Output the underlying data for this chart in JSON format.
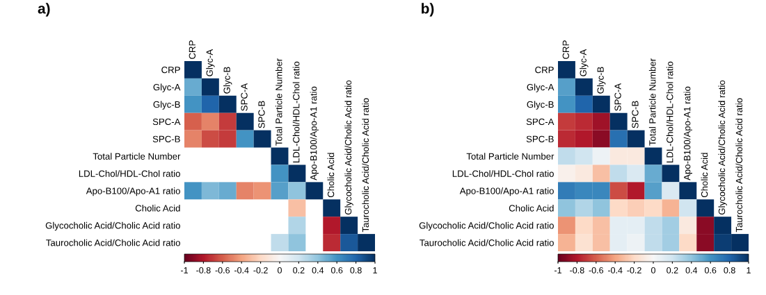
{
  "chart_data": [
    {
      "type": "heatmap",
      "title": "a)",
      "categories": [
        "CRP",
        "Glyc-A",
        "Glyc-B",
        "SPC-A",
        "SPC-B",
        "Total Particle Number",
        "LDL-Chol/HDL-Chol ratio",
        "Apo-B100/Apo-A1 ratio",
        "Cholic Acid",
        "Glycocholic Acid/Cholic Acid ratio",
        "Taurocholic Acid/Cholic Acid ratio"
      ],
      "y_categories": [
        "CRP",
        "Glyc-A",
        "Glyc-B",
        "SPC-A",
        "SPC-B",
        "Total Particle Number",
        "LDL-Chol/HDL-Chol ratio",
        "Apo-B100/Apo-A1 ratio",
        "Cholic Acid",
        "Glycocholic Acid/Cholic Acid ratio",
        "Taurocholic Acid/Cholic Acid ratio"
      ],
      "cells": [
        [
          1,
          null,
          null,
          null,
          null,
          null,
          null,
          null,
          null,
          null,
          null
        ],
        [
          0.5,
          1,
          null,
          null,
          null,
          null,
          null,
          null,
          null,
          null,
          null
        ],
        [
          0.6,
          0.8,
          1,
          null,
          null,
          null,
          null,
          null,
          null,
          null,
          null
        ],
        [
          -0.6,
          -0.5,
          -0.7,
          1,
          null,
          null,
          null,
          null,
          null,
          null,
          null
        ],
        [
          -0.5,
          -0.65,
          -0.7,
          0.6,
          1,
          null,
          null,
          null,
          null,
          null,
          null
        ],
        [
          null,
          null,
          null,
          null,
          null,
          1,
          null,
          null,
          null,
          null,
          null
        ],
        [
          null,
          null,
          null,
          null,
          null,
          0.6,
          1,
          null,
          null,
          null,
          null
        ],
        [
          0.6,
          0.45,
          0.5,
          -0.5,
          -0.45,
          0.55,
          0.4,
          1,
          null,
          null,
          null
        ],
        [
          null,
          null,
          null,
          null,
          null,
          null,
          -0.3,
          null,
          1,
          null,
          null
        ],
        [
          null,
          null,
          null,
          null,
          null,
          null,
          0.3,
          null,
          -0.8,
          1,
          null
        ],
        [
          null,
          null,
          null,
          null,
          null,
          0.25,
          0.4,
          null,
          -0.75,
          0.85,
          1
        ]
      ],
      "clim": [
        -1,
        1
      ],
      "cticks": [
        -1,
        -0.8,
        -0.6,
        -0.4,
        -0.2,
        0,
        0.2,
        0.4,
        0.6,
        0.8,
        1
      ]
    },
    {
      "type": "heatmap",
      "title": "b)",
      "categories": [
        "CRP",
        "Glyc-A",
        "Glyc-B",
        "SPC-A",
        "SPC-B",
        "Total Particle Number",
        "LDL-Chol/HDL-Chol ratio",
        "Apo-B100/Apo-A1 ratio",
        "Cholic Acid",
        "Glycocholic Acid/Cholic Acid ratio",
        "Taurocholic Acid/Cholic Acid ratio"
      ],
      "y_categories": [
        "CRP",
        "Glyc-A",
        "Glyc-B",
        "SPC-A",
        "SPC-B",
        "Total Particle Number",
        "LDL-Chol/HDL-Chol ratio",
        "Apo-B100/Apo-A1 ratio",
        "Cholic Acid",
        "Glycocholic Acid/Cholic Acid ratio",
        "Taurocholic Acid/Cholic Acid ratio"
      ],
      "cells": [
        [
          1,
          null,
          null,
          null,
          null,
          null,
          null,
          null,
          null,
          null,
          null
        ],
        [
          0.55,
          1,
          null,
          null,
          null,
          null,
          null,
          null,
          null,
          null,
          null
        ],
        [
          0.6,
          0.8,
          1,
          null,
          null,
          null,
          null,
          null,
          null,
          null,
          null
        ],
        [
          -0.7,
          -0.75,
          -0.85,
          1,
          null,
          null,
          null,
          null,
          null,
          null,
          null
        ],
        [
          -0.75,
          -0.8,
          -0.9,
          0.75,
          1,
          null,
          null,
          null,
          null,
          null,
          null
        ],
        [
          0.25,
          0.2,
          0.05,
          -0.1,
          -0.1,
          1,
          null,
          null,
          null,
          null,
          null
        ],
        [
          -0.05,
          -0.1,
          -0.3,
          0.25,
          0.15,
          0.5,
          1,
          null,
          null,
          null,
          null
        ],
        [
          0.7,
          0.65,
          0.65,
          -0.65,
          -0.8,
          0.55,
          0.15,
          1,
          null,
          null,
          null
        ],
        [
          0.4,
          0.3,
          0.4,
          -0.2,
          -0.25,
          -0.2,
          -0.35,
          0.2,
          1,
          null,
          null
        ],
        [
          -0.45,
          -0.2,
          -0.3,
          0.1,
          0.1,
          0.25,
          0.35,
          -0.1,
          -0.9,
          1,
          null
        ],
        [
          -0.35,
          -0.15,
          -0.3,
          0.1,
          0.05,
          0.25,
          0.35,
          -0.2,
          -0.9,
          0.95,
          1
        ]
      ],
      "clim": [
        -1,
        1
      ],
      "cticks": [
        -1,
        -0.8,
        -0.6,
        -0.4,
        -0.2,
        0,
        0.2,
        0.4,
        0.6,
        0.8,
        1
      ]
    }
  ]
}
